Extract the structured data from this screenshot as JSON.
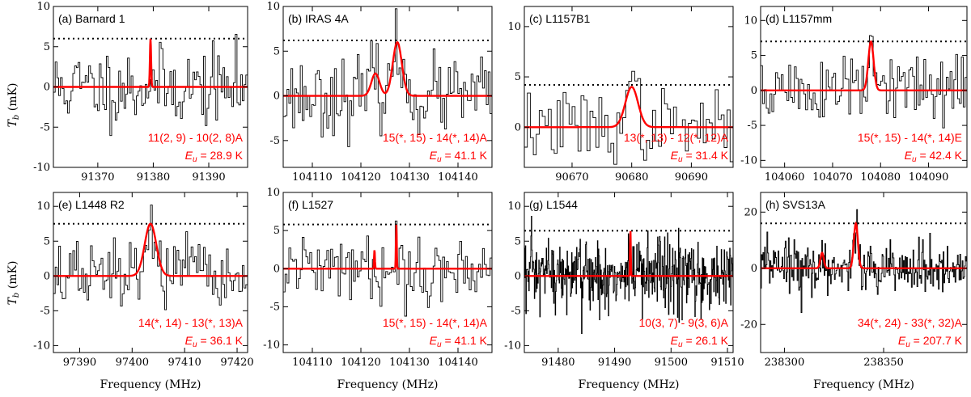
{
  "figure": {
    "xlabel": "Frequency (MHz)",
    "ylabel_main": "T",
    "ylabel_sub": "b",
    "ylabel_unit": " (mK)",
    "model_color": "#ff0000",
    "obs_color": "#000000",
    "threshold_style": "dotted"
  },
  "chart_data": [
    {
      "type": "line",
      "panel": "(a)",
      "source": "Barnard 1",
      "xlim": [
        91362,
        91397
      ],
      "ylim": [
        -10,
        10
      ],
      "xticks": [
        91370,
        91380,
        91390
      ],
      "yticks": [
        -10,
        -5,
        0,
        5,
        10
      ],
      "threshold": 6.0,
      "seed": 11,
      "noise_sigma": 2.4,
      "channels": 110,
      "lines": [
        {
          "center": 91379.5,
          "peak": 6.0,
          "fwhm": 0.25
        }
      ],
      "transition": "11(2, 9) - 10(2, 8)A",
      "eu_prefix": "E",
      "eu_sub": "u",
      "eu_value": " = 28.9 K"
    },
    {
      "type": "line",
      "panel": "(b)",
      "source": "IRAS 4A",
      "xlim": [
        104104,
        104147
      ],
      "ylim": [
        -8,
        10
      ],
      "xticks": [
        104110,
        104120,
        104130,
        104140
      ],
      "yticks": [
        -5,
        0,
        5,
        10
      ],
      "threshold": 6.2,
      "seed": 23,
      "noise_sigma": 2.1,
      "channels": 110,
      "lines": [
        {
          "center": 104123,
          "peak": 2.5,
          "fwhm": 2.0
        },
        {
          "center": 104127.5,
          "peak": 6.0,
          "fwhm": 2.2
        }
      ],
      "transition": "15(*, 15) - 14(*, 14)A",
      "eu_prefix": "E",
      "eu_sub": "u",
      "eu_value": " = 41.1 K"
    },
    {
      "type": "line",
      "panel": "(c)",
      "source": "L1157B1",
      "xlim": [
        90662,
        90697
      ],
      "ylim": [
        -4,
        12
      ],
      "xticks": [
        90670,
        90680,
        90690
      ],
      "yticks": [
        0,
        5,
        10
      ],
      "threshold": 4.2,
      "seed": 37,
      "noise_sigma": 1.8,
      "channels": 70,
      "lines": [
        {
          "center": 90680,
          "peak": 4.0,
          "fwhm": 2.5
        }
      ],
      "transition": "13(*, 13) - 12(*, 12)A",
      "eu_prefix": "E",
      "eu_sub": "u",
      "eu_value": " = 31.4 K"
    },
    {
      "type": "line",
      "panel": "(d)",
      "source": "L1157mm",
      "xlim": [
        104055,
        104098
      ],
      "ylim": [
        -11,
        12
      ],
      "xticks": [
        104060,
        104070,
        104080,
        104090
      ],
      "yticks": [
        -10,
        -5,
        0,
        5,
        10
      ],
      "threshold": 7.0,
      "seed": 51,
      "noise_sigma": 2.6,
      "channels": 110,
      "lines": [
        {
          "center": 104078,
          "peak": 7.0,
          "fwhm": 1.3
        }
      ],
      "transition": "15(*, 15) - 14(*, 14)E",
      "eu_prefix": "E",
      "eu_sub": "u",
      "eu_value": " = 42.4 K"
    },
    {
      "type": "line",
      "panel": "(e)",
      "source": "L1448 R2",
      "xlim": [
        97385,
        97422
      ],
      "ylim": [
        -11,
        12
      ],
      "xticks": [
        97390,
        97400,
        97410,
        97420
      ],
      "yticks": [
        -10,
        -5,
        0,
        5,
        10
      ],
      "threshold": 7.5,
      "seed": 67,
      "noise_sigma": 2.5,
      "channels": 110,
      "lines": [
        {
          "center": 97403.5,
          "peak": 7.5,
          "fwhm": 2.6
        }
      ],
      "transition": "14(*, 14) - 13(*, 13)A",
      "eu_prefix": "E",
      "eu_sub": "u",
      "eu_value": " = 36.1 K"
    },
    {
      "type": "line",
      "panel": "(f)",
      "source": "L1527",
      "xlim": [
        104104,
        104147
      ],
      "ylim": [
        -11,
        10
      ],
      "xticks": [
        104110,
        104120,
        104130,
        104140
      ],
      "yticks": [
        -10,
        -5,
        0,
        5,
        10
      ],
      "threshold": 5.8,
      "seed": 79,
      "noise_sigma": 2.0,
      "channels": 110,
      "lines": [
        {
          "center": 104122.8,
          "peak": 2.5,
          "fwhm": 0.2
        },
        {
          "center": 104127.3,
          "peak": 5.8,
          "fwhm": 0.2
        }
      ],
      "transition": "15(*, 15) - 14(*, 14)A",
      "eu_prefix": "E",
      "eu_sub": "u",
      "eu_value": " = 41.1 K"
    },
    {
      "type": "line",
      "panel": "(g)",
      "source": "L1544",
      "xlim": [
        91474,
        91511
      ],
      "ylim": [
        -11,
        12
      ],
      "xticks": [
        91480,
        91490,
        91500,
        91510
      ],
      "yticks": [
        -10,
        -5,
        0,
        5,
        10
      ],
      "threshold": 6.5,
      "seed": 97,
      "noise_sigma": 2.8,
      "channels": 420,
      "lines": [
        {
          "center": 91492.8,
          "peak": 6.5,
          "fwhm": 0.15
        }
      ],
      "transition": "10(3, 7) - 9(3, 6)A",
      "eu_prefix": "E",
      "eu_sub": "u",
      "eu_value": " = 26.1 K"
    },
    {
      "type": "line",
      "panel": "(h)",
      "source": "SVS13A",
      "xlim": [
        238288,
        238392
      ],
      "ylim": [
        -30,
        27
      ],
      "xticks": [
        238300,
        238350
      ],
      "yticks": [
        -20,
        0,
        20
      ],
      "threshold": 16,
      "seed": 113,
      "noise_sigma": 4.5,
      "channels": 260,
      "lines": [
        {
          "center": 238319,
          "peak": 5.5,
          "fwhm": 2.0
        },
        {
          "center": 238336,
          "peak": 16,
          "fwhm": 2.4
        }
      ],
      "transition": "34(*, 24) - 33(*, 32)A",
      "eu_prefix": "E",
      "eu_sub": "u",
      "eu_value": " = 207.7 K"
    }
  ]
}
